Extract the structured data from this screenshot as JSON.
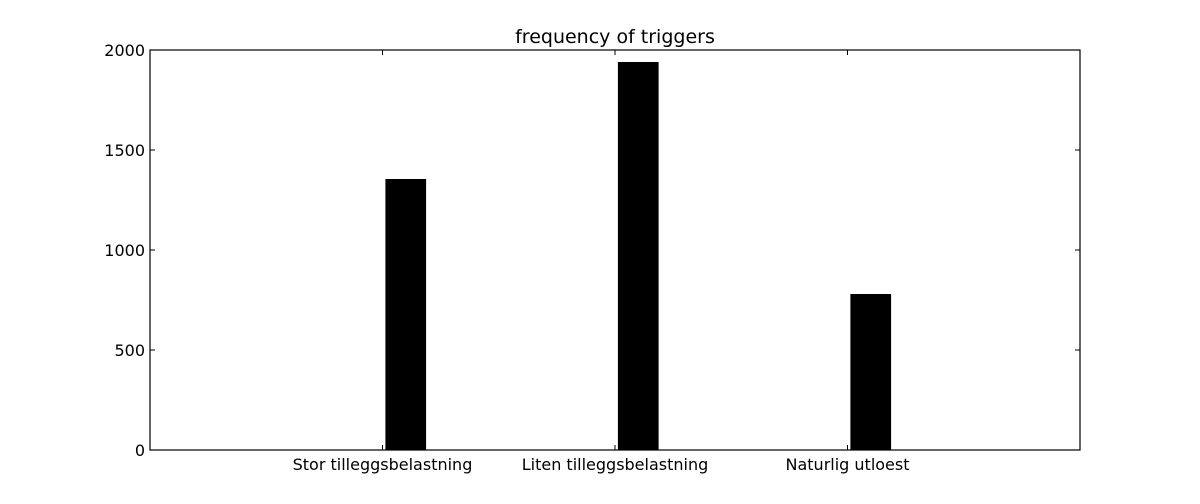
{
  "chart_data": {
    "type": "bar",
    "title": "frequency of triggers",
    "xlabel": "",
    "ylabel": "",
    "categories": [
      "Stor tilleggsbelastning",
      "Liten tilleggsbelastning",
      "Naturlig utloest"
    ],
    "values": [
      1355,
      1940,
      780
    ],
    "ylim": [
      0,
      2000
    ],
    "yticks": [
      0,
      500,
      1000,
      1500,
      2000
    ],
    "grid": false,
    "legend": "none",
    "bar_color": "#000000",
    "axis_color": "#000000"
  }
}
